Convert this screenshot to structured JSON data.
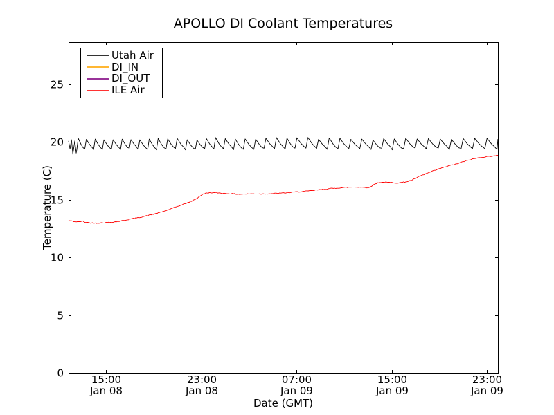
{
  "page": {
    "background": "#ffffff"
  },
  "chart_data": {
    "type": "line",
    "title": "APOLLO DI Coolant Temperatures",
    "xlabel": "Date (GMT)",
    "ylabel": "Temperature (C)",
    "x_unit": "hours since Jan 08 00:00 GMT",
    "xlim": [
      11.858,
      47.93
    ],
    "ylim": [
      0,
      28.66
    ],
    "grid": false,
    "legend_position": "upper left",
    "x_ticks": [
      {
        "hour": 15,
        "label_time": "15:00",
        "label_date": "Jan 08"
      },
      {
        "hour": 23,
        "label_time": "23:00",
        "label_date": "Jan 08"
      },
      {
        "hour": 31,
        "label_time": "07:00",
        "label_date": "Jan 09"
      },
      {
        "hour": 39,
        "label_time": "15:00",
        "label_date": "Jan 09"
      },
      {
        "hour": 47,
        "label_time": "23:00",
        "label_date": "Jan 09"
      }
    ],
    "y_ticks": [
      0,
      5,
      10,
      15,
      20,
      25
    ],
    "series": [
      {
        "name": "Utah Air",
        "color": "#000000",
        "style": "sawtooth",
        "sawtooth": {
          "start_hour": 12.55,
          "end_hour": 47.93,
          "period_start_h": 0.72,
          "period_end_h": 1.02,
          "valley_c": 19.4,
          "peak_c": 20.25,
          "rise_fraction": 0.18,
          "jitter_c": 0.08,
          "seed": 7
        },
        "lead_in_points": [
          [
            11.86,
            20.1
          ],
          [
            11.98,
            19.4
          ],
          [
            12.1,
            20.2
          ],
          [
            12.22,
            18.95
          ],
          [
            12.38,
            20.1
          ],
          [
            12.5,
            19.05
          ]
        ]
      },
      {
        "name": "DI_IN",
        "color": "#ffa500",
        "points": []
      },
      {
        "name": "DI_OUT",
        "color": "#800080",
        "points": []
      },
      {
        "name": "ILE Air",
        "color": "#ff0000",
        "noise_c": 0.035,
        "points": [
          [
            11.86,
            13.2
          ],
          [
            12.3,
            13.12
          ],
          [
            12.7,
            13.08
          ],
          [
            13.0,
            13.15
          ],
          [
            13.25,
            13.05
          ],
          [
            13.7,
            13.0
          ],
          [
            14.2,
            12.98
          ],
          [
            14.7,
            13.0
          ],
          [
            15.2,
            13.03
          ],
          [
            15.7,
            13.08
          ],
          [
            16.2,
            13.15
          ],
          [
            16.7,
            13.25
          ],
          [
            17.2,
            13.35
          ],
          [
            17.7,
            13.45
          ],
          [
            18.2,
            13.55
          ],
          [
            18.7,
            13.68
          ],
          [
            19.2,
            13.8
          ],
          [
            19.7,
            13.95
          ],
          [
            20.2,
            14.12
          ],
          [
            20.7,
            14.3
          ],
          [
            21.2,
            14.5
          ],
          [
            21.7,
            14.68
          ],
          [
            22.2,
            14.88
          ],
          [
            22.6,
            15.1
          ],
          [
            23.0,
            15.4
          ],
          [
            23.4,
            15.58
          ],
          [
            23.9,
            15.62
          ],
          [
            24.4,
            15.6
          ],
          [
            25.0,
            15.55
          ],
          [
            25.6,
            15.52
          ],
          [
            26.2,
            15.48
          ],
          [
            26.8,
            15.5
          ],
          [
            27.4,
            15.52
          ],
          [
            28.0,
            15.5
          ],
          [
            28.6,
            15.52
          ],
          [
            29.2,
            15.55
          ],
          [
            29.8,
            15.58
          ],
          [
            30.4,
            15.62
          ],
          [
            31.0,
            15.68
          ],
          [
            31.6,
            15.72
          ],
          [
            32.2,
            15.78
          ],
          [
            32.8,
            15.85
          ],
          [
            33.4,
            15.92
          ],
          [
            34.0,
            15.98
          ],
          [
            34.6,
            16.03
          ],
          [
            35.2,
            16.07
          ],
          [
            35.8,
            16.1
          ],
          [
            36.4,
            16.1
          ],
          [
            36.9,
            16.05
          ],
          [
            37.2,
            16.1
          ],
          [
            37.55,
            16.35
          ],
          [
            37.9,
            16.5
          ],
          [
            38.4,
            16.52
          ],
          [
            38.9,
            16.5
          ],
          [
            39.4,
            16.46
          ],
          [
            39.9,
            16.5
          ],
          [
            40.3,
            16.58
          ],
          [
            40.7,
            16.7
          ],
          [
            41.1,
            16.9
          ],
          [
            41.5,
            17.1
          ],
          [
            42.0,
            17.3
          ],
          [
            42.5,
            17.5
          ],
          [
            43.0,
            17.68
          ],
          [
            43.5,
            17.85
          ],
          [
            44.0,
            18.0
          ],
          [
            44.5,
            18.12
          ],
          [
            45.0,
            18.3
          ],
          [
            45.5,
            18.45
          ],
          [
            46.0,
            18.58
          ],
          [
            46.5,
            18.68
          ],
          [
            47.0,
            18.74
          ],
          [
            47.5,
            18.8
          ],
          [
            47.93,
            18.85
          ]
        ]
      }
    ]
  }
}
